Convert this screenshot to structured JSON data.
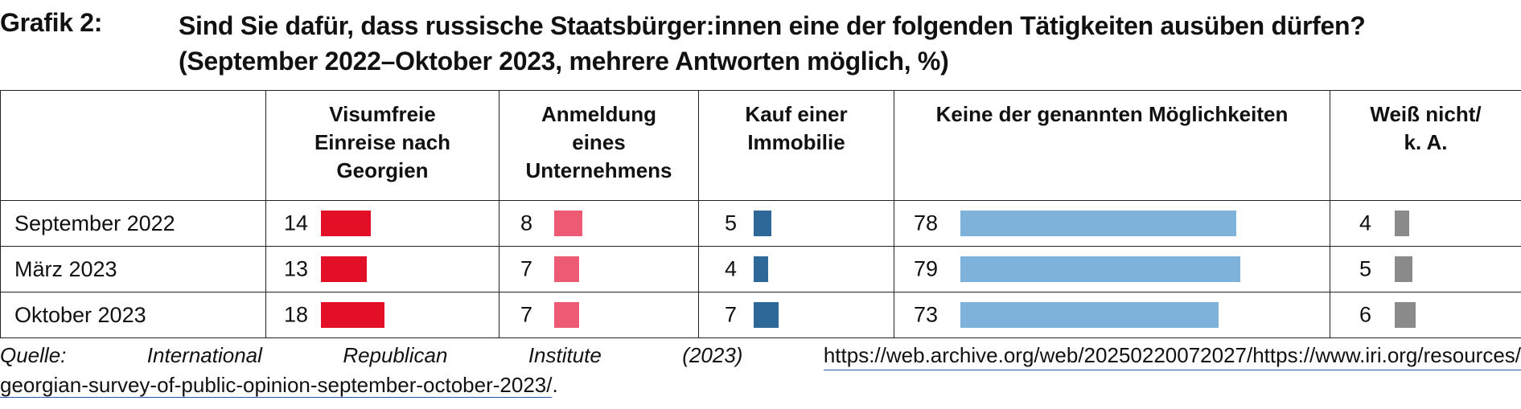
{
  "title": {
    "label": "Grafik 2:",
    "line1": "Sind Sie dafür, dass russische Staatsbürger:innen eine der folgenden Tätigkeiten ausüben dürfen?",
    "line2": "(September 2022–Oktober 2023, mehrere Antworten möglich, %)"
  },
  "chart_data": {
    "type": "table",
    "categories": [
      "September 2022",
      "März 2023",
      "Oktober 2023"
    ],
    "series": [
      {
        "name": "Visumfreie Einreise nach Georgien",
        "color": "#e30f26",
        "values": [
          14,
          13,
          18
        ]
      },
      {
        "name": "Anmeldung eines Unternehmens",
        "color": "#ec5a73",
        "values": [
          8,
          7,
          7
        ]
      },
      {
        "name": "Kauf einer Immobilie",
        "color": "#2e6898",
        "values": [
          5,
          4,
          7
        ]
      },
      {
        "name": "Keine der genannten Möglichkeiten",
        "color": "#7fb2da",
        "values": [
          78,
          79,
          73
        ]
      },
      {
        "name": "Weiß nicht/ k. A.",
        "color": "#8a8a8a",
        "values": [
          4,
          5,
          6
        ]
      }
    ],
    "headers": [
      [
        "Visumfreie",
        "Einreise nach",
        "Georgien"
      ],
      [
        "Anmeldung",
        "eines",
        "Unternehmens"
      ],
      [
        "Kauf einer",
        "Immobilie"
      ],
      [
        "Keine der genannten Möglichkeiten"
      ],
      [
        "Weiß nicht/",
        "k. A."
      ]
    ],
    "unit": "%"
  },
  "source": {
    "words": [
      "Quelle:",
      "International",
      "Republican",
      "Institute",
      "(2023)"
    ],
    "url_part1": "https://web.archive.org/web/20250220072027/https://www.iri.org/resources/",
    "url_part2": "georgian-survey-of-public-opinion-september-october-2023/",
    "trailing": "."
  }
}
